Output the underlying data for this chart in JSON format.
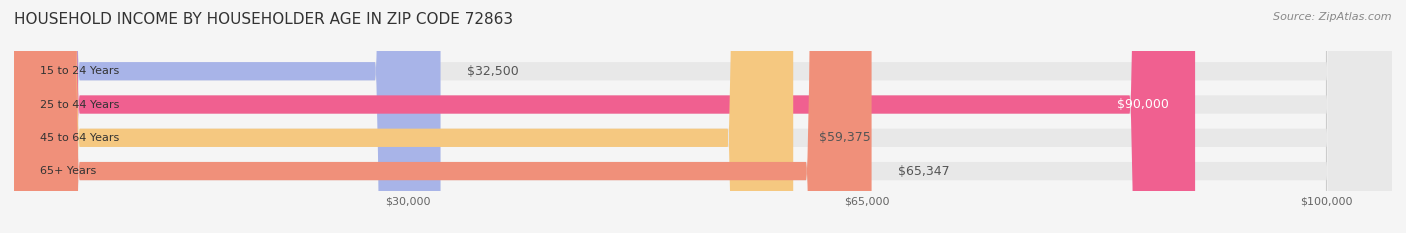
{
  "title": "HOUSEHOLD INCOME BY HOUSEHOLDER AGE IN ZIP CODE 72863",
  "source": "Source: ZipAtlas.com",
  "categories": [
    "15 to 24 Years",
    "25 to 44 Years",
    "45 to 64 Years",
    "65+ Years"
  ],
  "values": [
    32500,
    90000,
    59375,
    65347
  ],
  "bar_colors": [
    "#a8b4e8",
    "#f06090",
    "#f5c880",
    "#f0907a"
  ],
  "bar_labels": [
    "$32,500",
    "$90,000",
    "$59,375",
    "$65,347"
  ],
  "label_colors": [
    "#555555",
    "#ffffff",
    "#555555",
    "#555555"
  ],
  "x_ticks": [
    30000,
    65000,
    100000
  ],
  "x_tick_labels": [
    "$30,000",
    "$65,000",
    "$100,000"
  ],
  "x_min": 0,
  "x_max": 105000,
  "background_color": "#f5f5f5",
  "bar_background_color": "#e8e8e8",
  "title_fontsize": 11,
  "source_fontsize": 8,
  "label_fontsize": 9,
  "tick_fontsize": 8,
  "category_fontsize": 8,
  "bar_height": 0.55
}
